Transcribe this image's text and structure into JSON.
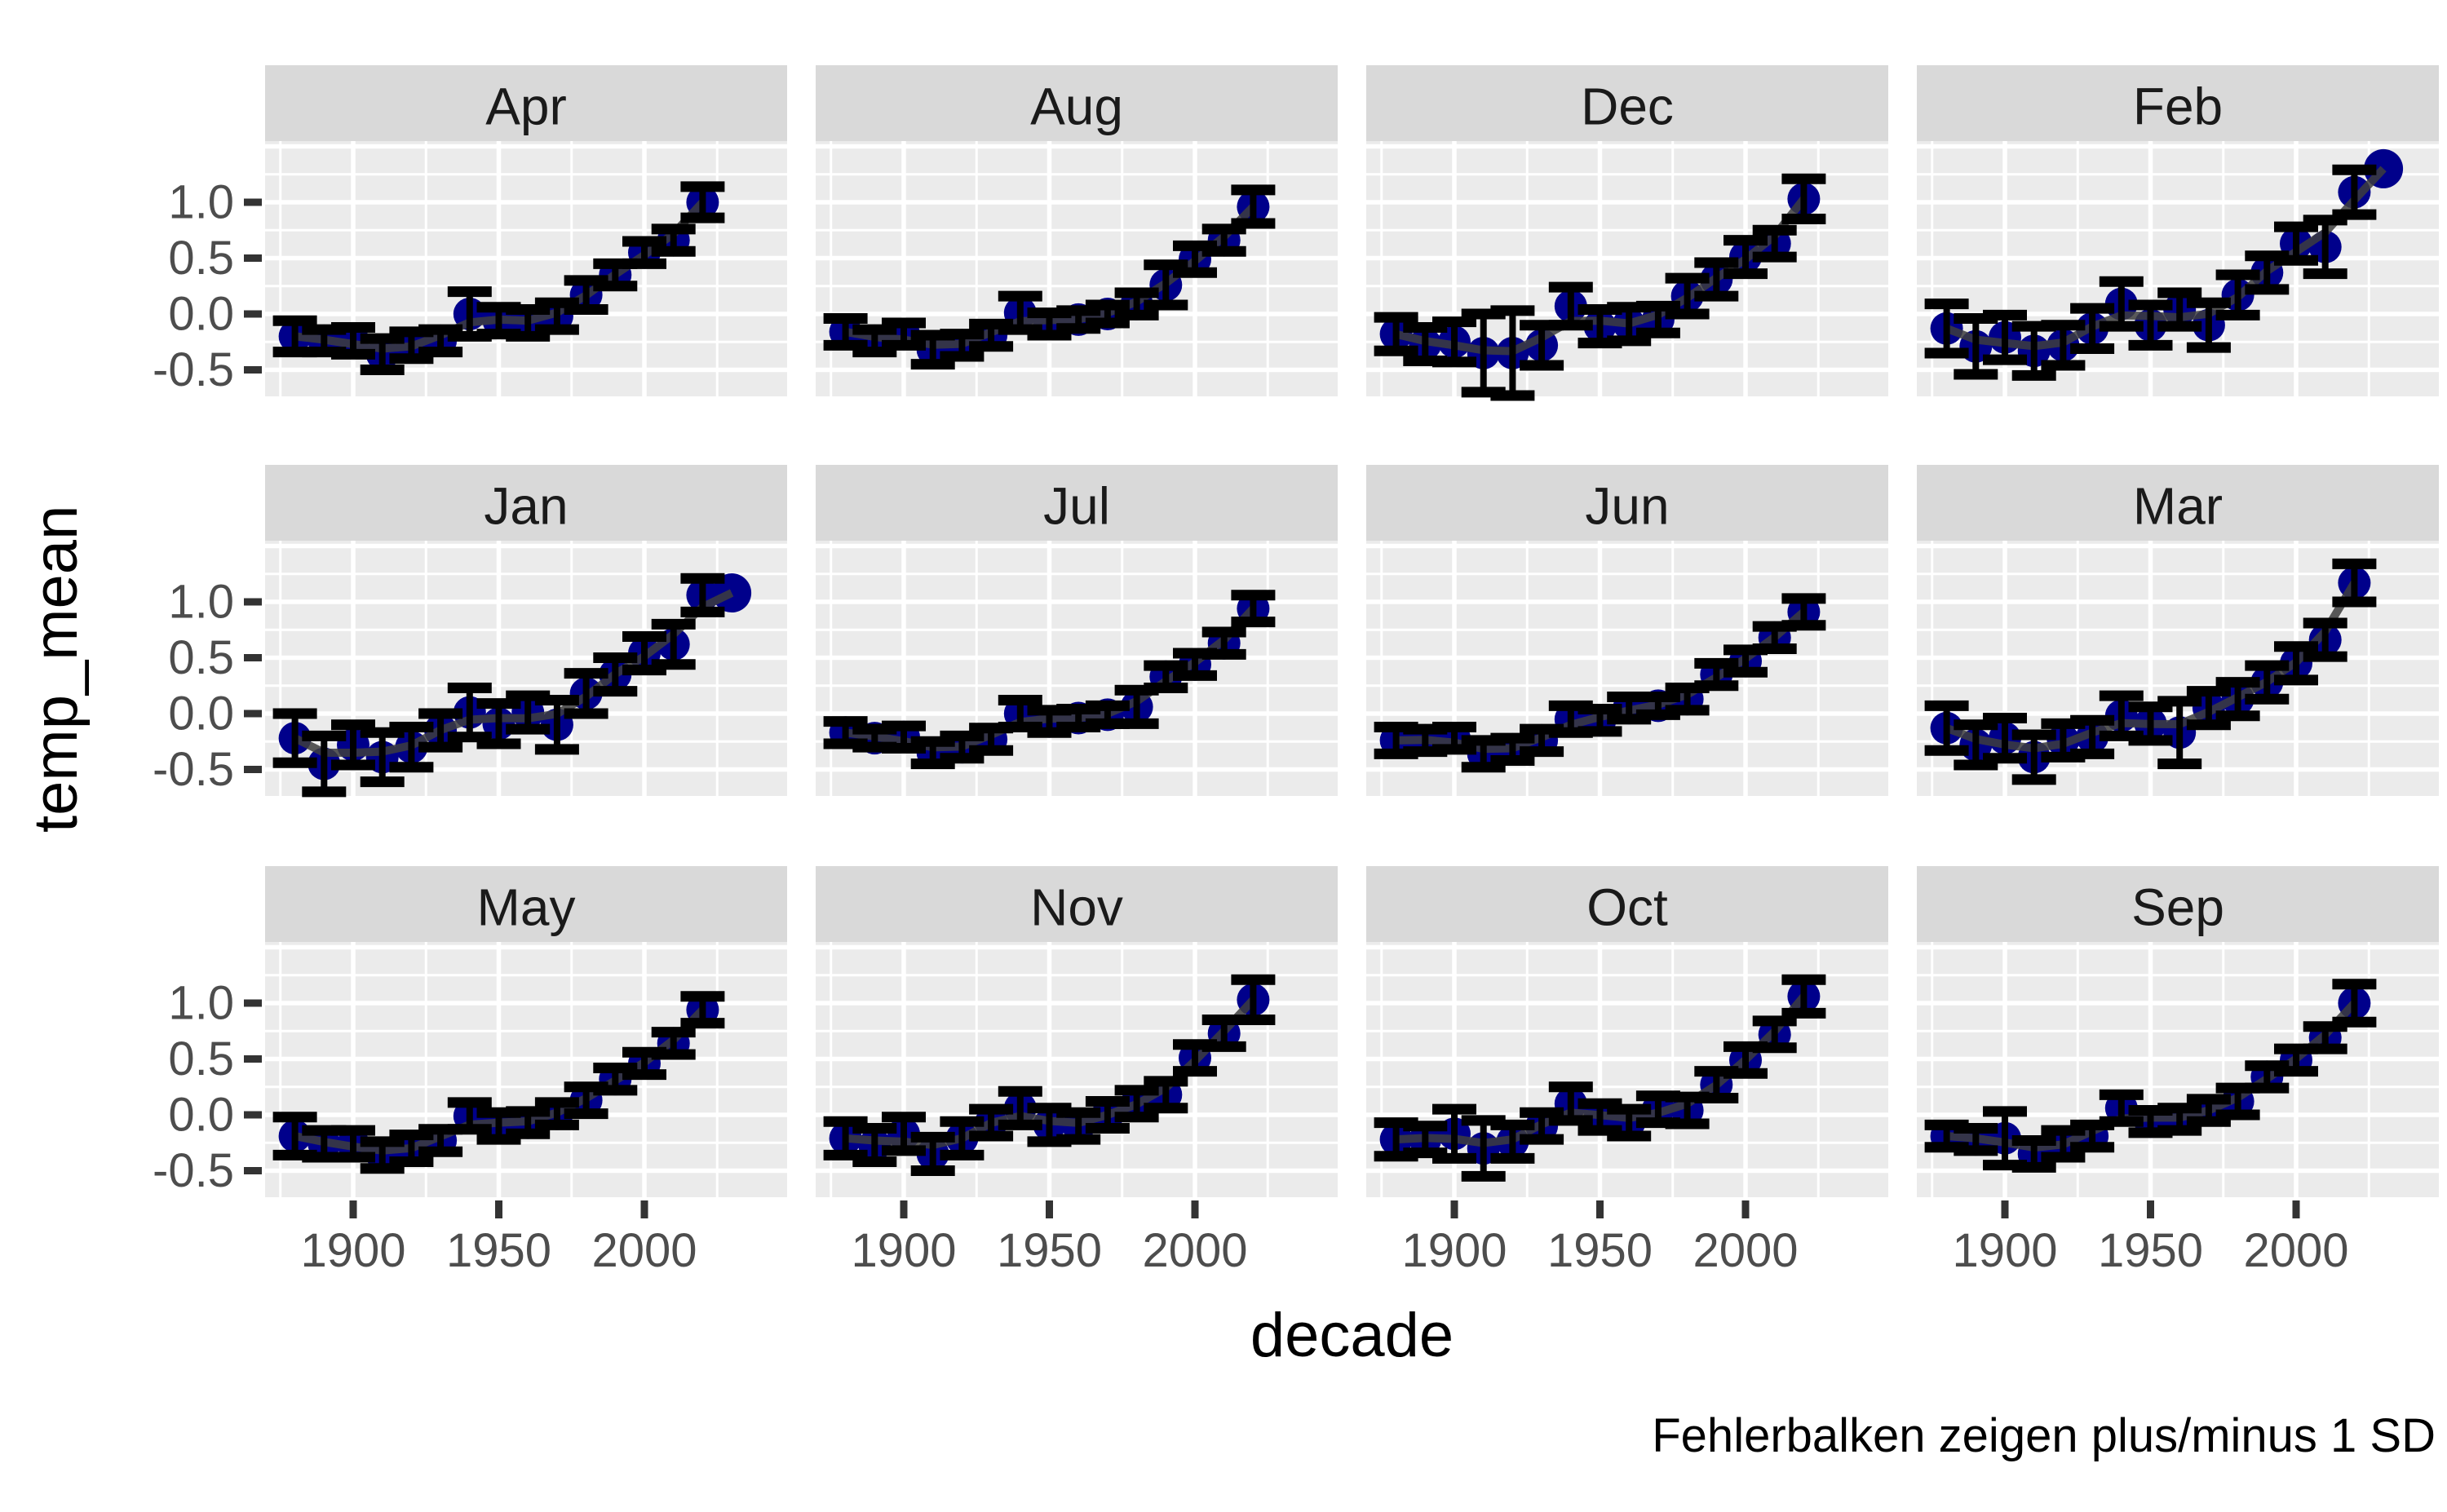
{
  "figure": {
    "ylabel": "temp_mean",
    "xlabel": "decade",
    "caption": "Fehlerbalken zeigen plus/minus 1 SD"
  },
  "chart_data": {
    "type": "scatter",
    "title": "",
    "xlabel": "decade",
    "ylabel": "temp_mean",
    "caption": "Fehlerbalken zeigen plus/minus 1 SD",
    "faceted_by": "month",
    "grid": true,
    "legend": "none",
    "error_bars": "plus/minus 1 SD",
    "x_ticks": [
      {
        "v": 1900,
        "label": "1900"
      },
      {
        "v": 1950,
        "label": "1950"
      },
      {
        "v": 2000,
        "label": "2000"
      }
    ],
    "y_ticks": [
      {
        "v": 1.0,
        "label": "1.0"
      },
      {
        "v": 0.5,
        "label": "0.5"
      },
      {
        "v": 0.0,
        "label": "0.0"
      },
      {
        "v": -0.5,
        "label": "-0.5"
      }
    ],
    "x_minor": [
      1875,
      1925,
      1975,
      2025
    ],
    "y_minor": [
      1.25,
      0.75,
      0.25,
      -0.25
    ],
    "y_major_extra": [
      1.5
    ],
    "xlim": [
      1869,
      2043
    ],
    "ylim": [
      -0.737,
      1.547
    ],
    "colors": {
      "point": "#00008B",
      "trend": "#3d3d3d",
      "error": "#000000",
      "panel_bg": "#EBEBEB",
      "strip_bg": "#D9D9D9",
      "grid": "#FFFFFF",
      "tick_mark": "#333333",
      "tick_text": "#4D4D4D",
      "strip_text": "#1A1A1A"
    },
    "facets": [
      {
        "label": "Apr",
        "decades": [
          1880,
          1890,
          1900,
          1910,
          1920,
          1930,
          1940,
          1950,
          1960,
          1970,
          1980,
          1990,
          2000,
          2010,
          2020
        ],
        "mean": [
          -0.2,
          -0.24,
          -0.24,
          -0.36,
          -0.28,
          -0.24,
          0.0,
          -0.06,
          -0.08,
          -0.02,
          0.17,
          0.35,
          0.55,
          0.66,
          1.0
        ],
        "sd": [
          0.14,
          0.1,
          0.12,
          0.14,
          0.12,
          0.1,
          0.2,
          0.12,
          0.12,
          0.12,
          0.13,
          0.1,
          0.1,
          0.1,
          0.14
        ]
      },
      {
        "label": "Aug",
        "decades": [
          1880,
          1890,
          1900,
          1910,
          1920,
          1930,
          1940,
          1950,
          1960,
          1970,
          1980,
          1990,
          2000,
          2010,
          2020
        ],
        "mean": [
          -0.16,
          -0.24,
          -0.18,
          -0.32,
          -0.28,
          -0.19,
          0.01,
          -0.09,
          -0.05,
          0.0,
          0.09,
          0.26,
          0.49,
          0.66,
          0.96
        ],
        "sd": [
          0.12,
          0.1,
          0.1,
          0.13,
          0.1,
          0.1,
          0.15,
          0.1,
          0.08,
          0.08,
          0.1,
          0.18,
          0.12,
          0.1,
          0.15
        ]
      },
      {
        "label": "Dec",
        "decades": [
          1880,
          1890,
          1900,
          1910,
          1920,
          1930,
          1940,
          1950,
          1960,
          1970,
          1980,
          1990,
          2000,
          2010,
          2020
        ],
        "mean": [
          -0.18,
          -0.27,
          -0.25,
          -0.35,
          -0.35,
          -0.28,
          0.07,
          -0.11,
          -0.09,
          -0.05,
          0.16,
          0.31,
          0.51,
          0.63,
          1.03
        ],
        "sd": [
          0.15,
          0.15,
          0.18,
          0.35,
          0.38,
          0.18,
          0.17,
          0.15,
          0.15,
          0.12,
          0.16,
          0.15,
          0.15,
          0.12,
          0.18
        ]
      },
      {
        "label": "Feb",
        "decades": [
          1880,
          1890,
          1900,
          1910,
          1920,
          1930,
          1940,
          1950,
          1960,
          1970,
          1980,
          1990,
          2000,
          2010,
          2020,
          2030
        ],
        "mean": [
          -0.13,
          -0.29,
          -0.21,
          -0.33,
          -0.28,
          -0.13,
          0.09,
          -0.1,
          0.04,
          -0.1,
          0.17,
          0.37,
          0.63,
          0.6,
          1.09,
          1.3
        ],
        "sd": [
          0.22,
          0.25,
          0.2,
          0.22,
          0.18,
          0.18,
          0.2,
          0.18,
          0.15,
          0.2,
          0.18,
          0.15,
          0.15,
          0.24,
          0.2,
          null
        ]
      },
      {
        "label": "Jan",
        "decades": [
          1880,
          1890,
          1900,
          1910,
          1920,
          1930,
          1940,
          1950,
          1960,
          1970,
          1980,
          1990,
          2000,
          2010,
          2020,
          2030
        ],
        "mean": [
          -0.22,
          -0.45,
          -0.28,
          -0.39,
          -0.3,
          -0.15,
          0.01,
          -0.09,
          0.01,
          -0.1,
          0.18,
          0.35,
          0.54,
          0.62,
          1.06,
          1.08
        ],
        "sd": [
          0.22,
          0.25,
          0.18,
          0.22,
          0.18,
          0.15,
          0.22,
          0.18,
          0.15,
          0.22,
          0.18,
          0.15,
          0.15,
          0.18,
          0.15,
          null
        ]
      },
      {
        "label": "Jul",
        "decades": [
          1880,
          1890,
          1900,
          1910,
          1920,
          1930,
          1940,
          1950,
          1960,
          1970,
          1980,
          1990,
          2000,
          2010,
          2020
        ],
        "mean": [
          -0.17,
          -0.22,
          -0.21,
          -0.35,
          -0.3,
          -0.23,
          0.0,
          -0.07,
          -0.04,
          -0.01,
          0.06,
          0.33,
          0.44,
          0.63,
          0.94
        ],
        "sd": [
          0.1,
          0.08,
          0.1,
          0.1,
          0.1,
          0.1,
          0.12,
          0.1,
          0.08,
          0.08,
          0.15,
          0.1,
          0.1,
          0.1,
          0.12
        ]
      },
      {
        "label": "Jun",
        "decades": [
          1880,
          1890,
          1900,
          1910,
          1920,
          1930,
          1940,
          1950,
          1960,
          1970,
          1980,
          1990,
          2000,
          2010,
          2020
        ],
        "mean": [
          -0.24,
          -0.24,
          -0.22,
          -0.36,
          -0.32,
          -0.24,
          -0.05,
          -0.06,
          0.05,
          0.07,
          0.13,
          0.35,
          0.47,
          0.68,
          0.91
        ],
        "sd": [
          0.12,
          0.1,
          0.1,
          0.12,
          0.1,
          0.1,
          0.12,
          0.1,
          0.1,
          0.08,
          0.1,
          0.1,
          0.1,
          0.1,
          0.12
        ]
      },
      {
        "label": "Mar",
        "decades": [
          1880,
          1890,
          1900,
          1910,
          1920,
          1930,
          1940,
          1950,
          1960,
          1970,
          1980,
          1990,
          2000,
          2010,
          2020
        ],
        "mean": [
          -0.13,
          -0.28,
          -0.22,
          -0.39,
          -0.24,
          -0.21,
          -0.02,
          -0.09,
          -0.17,
          0.05,
          0.13,
          0.28,
          0.45,
          0.66,
          1.17
        ],
        "sd": [
          0.2,
          0.18,
          0.18,
          0.2,
          0.15,
          0.15,
          0.18,
          0.15,
          0.28,
          0.15,
          0.15,
          0.15,
          0.15,
          0.15,
          0.17
        ]
      },
      {
        "label": "May",
        "decades": [
          1880,
          1890,
          1900,
          1910,
          1920,
          1930,
          1940,
          1950,
          1960,
          1970,
          1980,
          1990,
          2000,
          2010,
          2020
        ],
        "mean": [
          -0.19,
          -0.26,
          -0.26,
          -0.36,
          -0.3,
          -0.23,
          -0.01,
          -0.1,
          -0.07,
          0.01,
          0.13,
          0.32,
          0.46,
          0.64,
          0.94
        ],
        "sd": [
          0.17,
          0.12,
          0.12,
          0.12,
          0.12,
          0.1,
          0.12,
          0.12,
          0.1,
          0.1,
          0.12,
          0.1,
          0.1,
          0.1,
          0.12
        ]
      },
      {
        "label": "Nov",
        "decades": [
          1880,
          1890,
          1900,
          1910,
          1920,
          1930,
          1940,
          1950,
          1960,
          1970,
          1980,
          1990,
          2000,
          2010,
          2020
        ],
        "mean": [
          -0.21,
          -0.27,
          -0.17,
          -0.35,
          -0.21,
          -0.07,
          0.06,
          -0.09,
          -0.1,
          0.0,
          0.1,
          0.18,
          0.51,
          0.73,
          1.03
        ],
        "sd": [
          0.15,
          0.15,
          0.15,
          0.15,
          0.15,
          0.12,
          0.15,
          0.15,
          0.12,
          0.12,
          0.12,
          0.12,
          0.12,
          0.12,
          0.18
        ]
      },
      {
        "label": "Oct",
        "decades": [
          1880,
          1890,
          1900,
          1910,
          1920,
          1930,
          1940,
          1950,
          1960,
          1970,
          1980,
          1990,
          2000,
          2010,
          2020
        ],
        "mean": [
          -0.22,
          -0.22,
          -0.17,
          -0.3,
          -0.24,
          -0.1,
          0.1,
          -0.02,
          -0.07,
          0.05,
          0.04,
          0.27,
          0.49,
          0.72,
          1.06
        ],
        "sd": [
          0.15,
          0.12,
          0.22,
          0.25,
          0.15,
          0.12,
          0.15,
          0.12,
          0.12,
          0.12,
          0.12,
          0.12,
          0.12,
          0.12,
          0.15
        ]
      },
      {
        "label": "Sep",
        "decades": [
          1880,
          1890,
          1900,
          1910,
          1920,
          1930,
          1940,
          1950,
          1960,
          1970,
          1980,
          1990,
          2000,
          2010,
          2020
        ],
        "mean": [
          -0.19,
          -0.22,
          -0.21,
          -0.35,
          -0.26,
          -0.19,
          0.06,
          -0.06,
          -0.04,
          0.04,
          0.12,
          0.34,
          0.49,
          0.69,
          1.0
        ],
        "sd": [
          0.1,
          0.1,
          0.24,
          0.12,
          0.12,
          0.1,
          0.12,
          0.1,
          0.1,
          0.1,
          0.12,
          0.1,
          0.1,
          0.1,
          0.17
        ]
      }
    ]
  }
}
